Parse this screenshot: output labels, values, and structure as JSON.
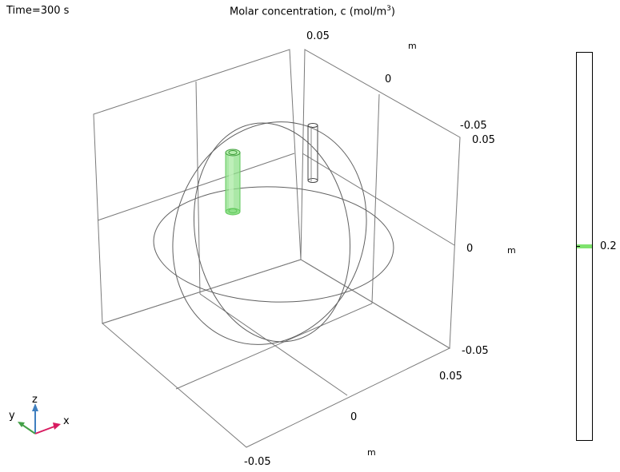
{
  "header": {
    "time_label": "Time=300 s",
    "title_prefix": "Molar concentration, c (mol/m",
    "title_sup": "3",
    "title_suffix": ")"
  },
  "axes": {
    "top_tick_005": "0.05",
    "top_unit_m": "m",
    "top_tick_0": "0",
    "top_tick_neg005": "-0.05",
    "right_tick_005": "0.05",
    "right_tick_0": "0",
    "right_unit_m": "m",
    "right_tick_neg005": "-0.05",
    "bottom_tick_005": "0.05",
    "bottom_tick_0": "0",
    "bottom_unit_m": "m",
    "bottom_tick_neg005": "-0.05"
  },
  "colorbar": {
    "value_label": "0.2",
    "marker_color": "#7fe36e"
  },
  "triad": {
    "x_label": "x",
    "y_label": "y",
    "z_label": "z",
    "x_color": "#d81b60",
    "y_color": "#43a047",
    "z_color": "#3f7fbf"
  },
  "colors": {
    "cylinder_fill": "#8fe08a"
  }
}
